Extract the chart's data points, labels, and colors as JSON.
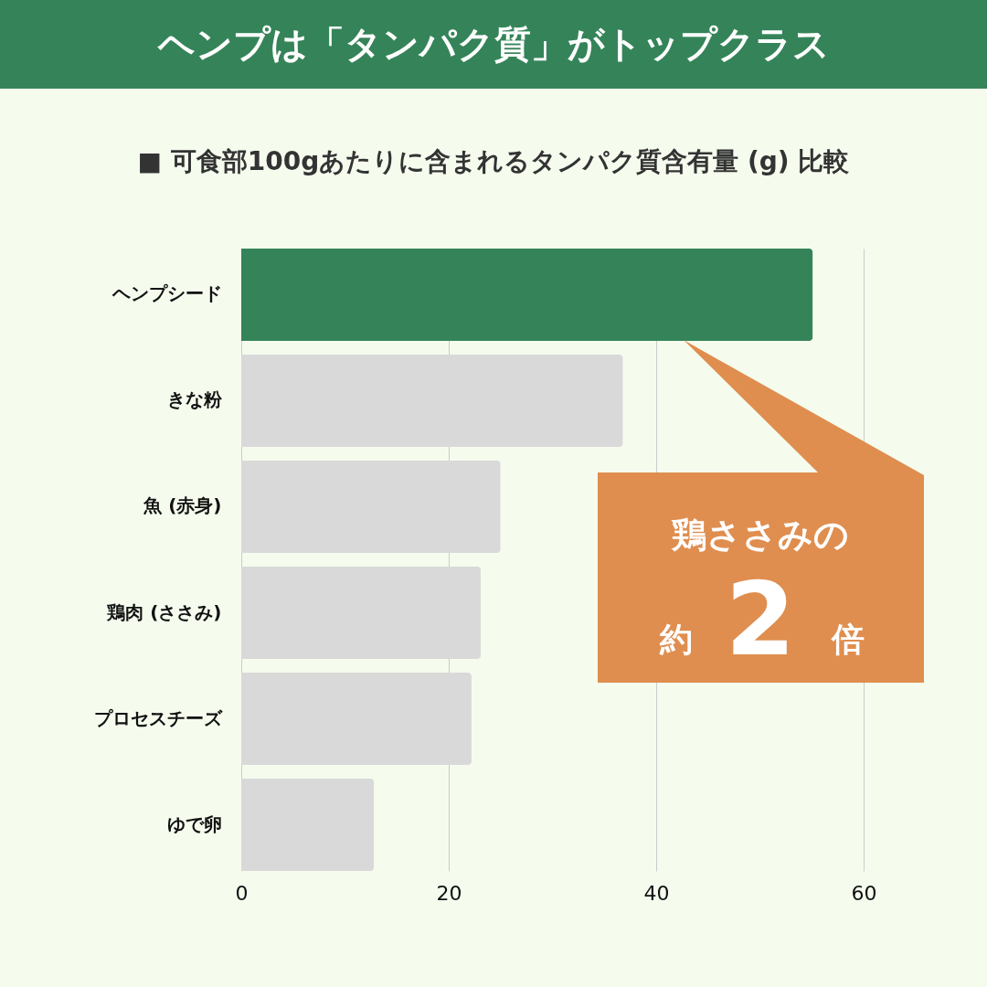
{
  "chart_data": {
    "type": "bar",
    "orientation": "horizontal",
    "title": "ヘンプは「タンパク質」がトップクラス",
    "subtitle": "■ 可食部100gあたりに含まれるタンパク質含有量 (g) 比較",
    "categories": [
      "ヘンプシード",
      "きな粉",
      "魚 (赤身)",
      "鶏肉 (ささみ)",
      "プロセスチーズ",
      "ゆで卵"
    ],
    "values": [
      55.1,
      36.8,
      25.0,
      23.1,
      22.2,
      12.8
    ],
    "colors": [
      "#358459",
      "#d9d9d9",
      "#d9d9d9",
      "#d9d9d9",
      "#d9d9d9",
      "#d9d9d9"
    ],
    "xlim": [
      0,
      60
    ],
    "xticks": [
      0,
      20,
      40,
      60
    ],
    "grid": "x",
    "annotations": [
      "鶏ささみの",
      "約",
      "2",
      "倍"
    ]
  }
}
